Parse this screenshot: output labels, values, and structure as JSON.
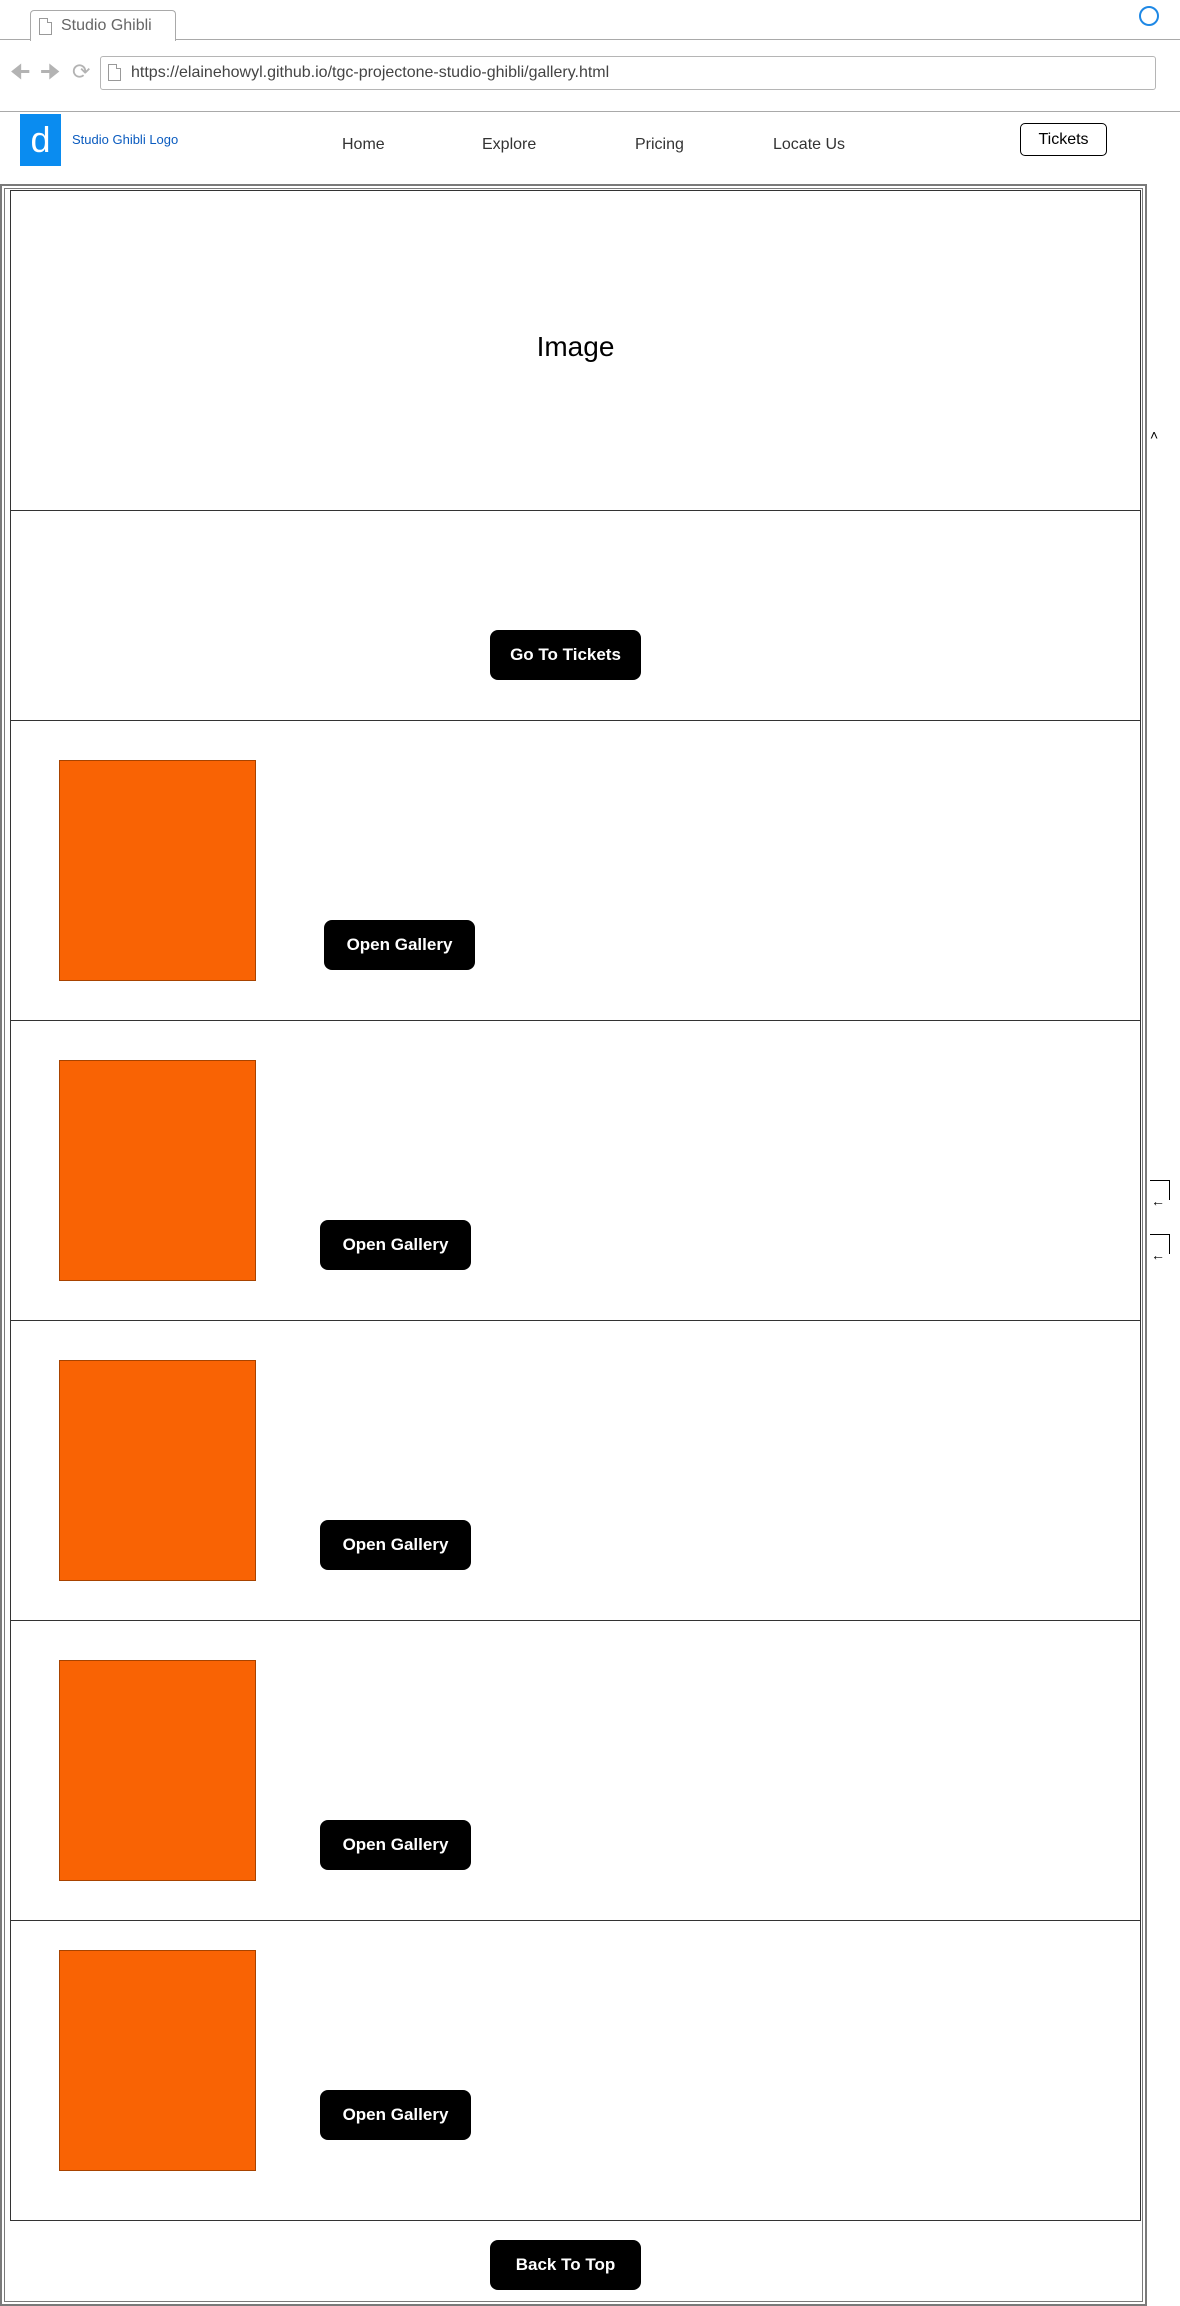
{
  "browser": {
    "tab_title": "Studio Ghibli",
    "url": "https://elainehowyl.github.io/tgc-projectone-studio-ghibli/gallery.html",
    "icons": [
      "back-arrow-icon",
      "forward-arrow-icon",
      "reload-icon",
      "page-icon",
      "circle-icon"
    ]
  },
  "header": {
    "logo_letter": "d",
    "logo_text": "Studio Ghibli Logo",
    "nav": [
      "Home",
      "Explore",
      "Pricing",
      "Locate Us"
    ],
    "tickets_label": "Tickets"
  },
  "hero": {
    "placeholder": "Image"
  },
  "cta": {
    "label": "Go To Tickets"
  },
  "gallery": [
    {
      "button_label": "Open Gallery"
    },
    {
      "button_label": "Open Gallery"
    },
    {
      "button_label": "Open Gallery"
    },
    {
      "button_label": "Open Gallery"
    },
    {
      "button_label": "Open Gallery"
    }
  ],
  "footer": {
    "back_to_top_label": "Back To Top"
  },
  "colors": {
    "accent_orange": "#f96304",
    "logo_blue": "#0a8cf0",
    "button_black": "#000000",
    "circle_blue": "#1e88e5"
  }
}
